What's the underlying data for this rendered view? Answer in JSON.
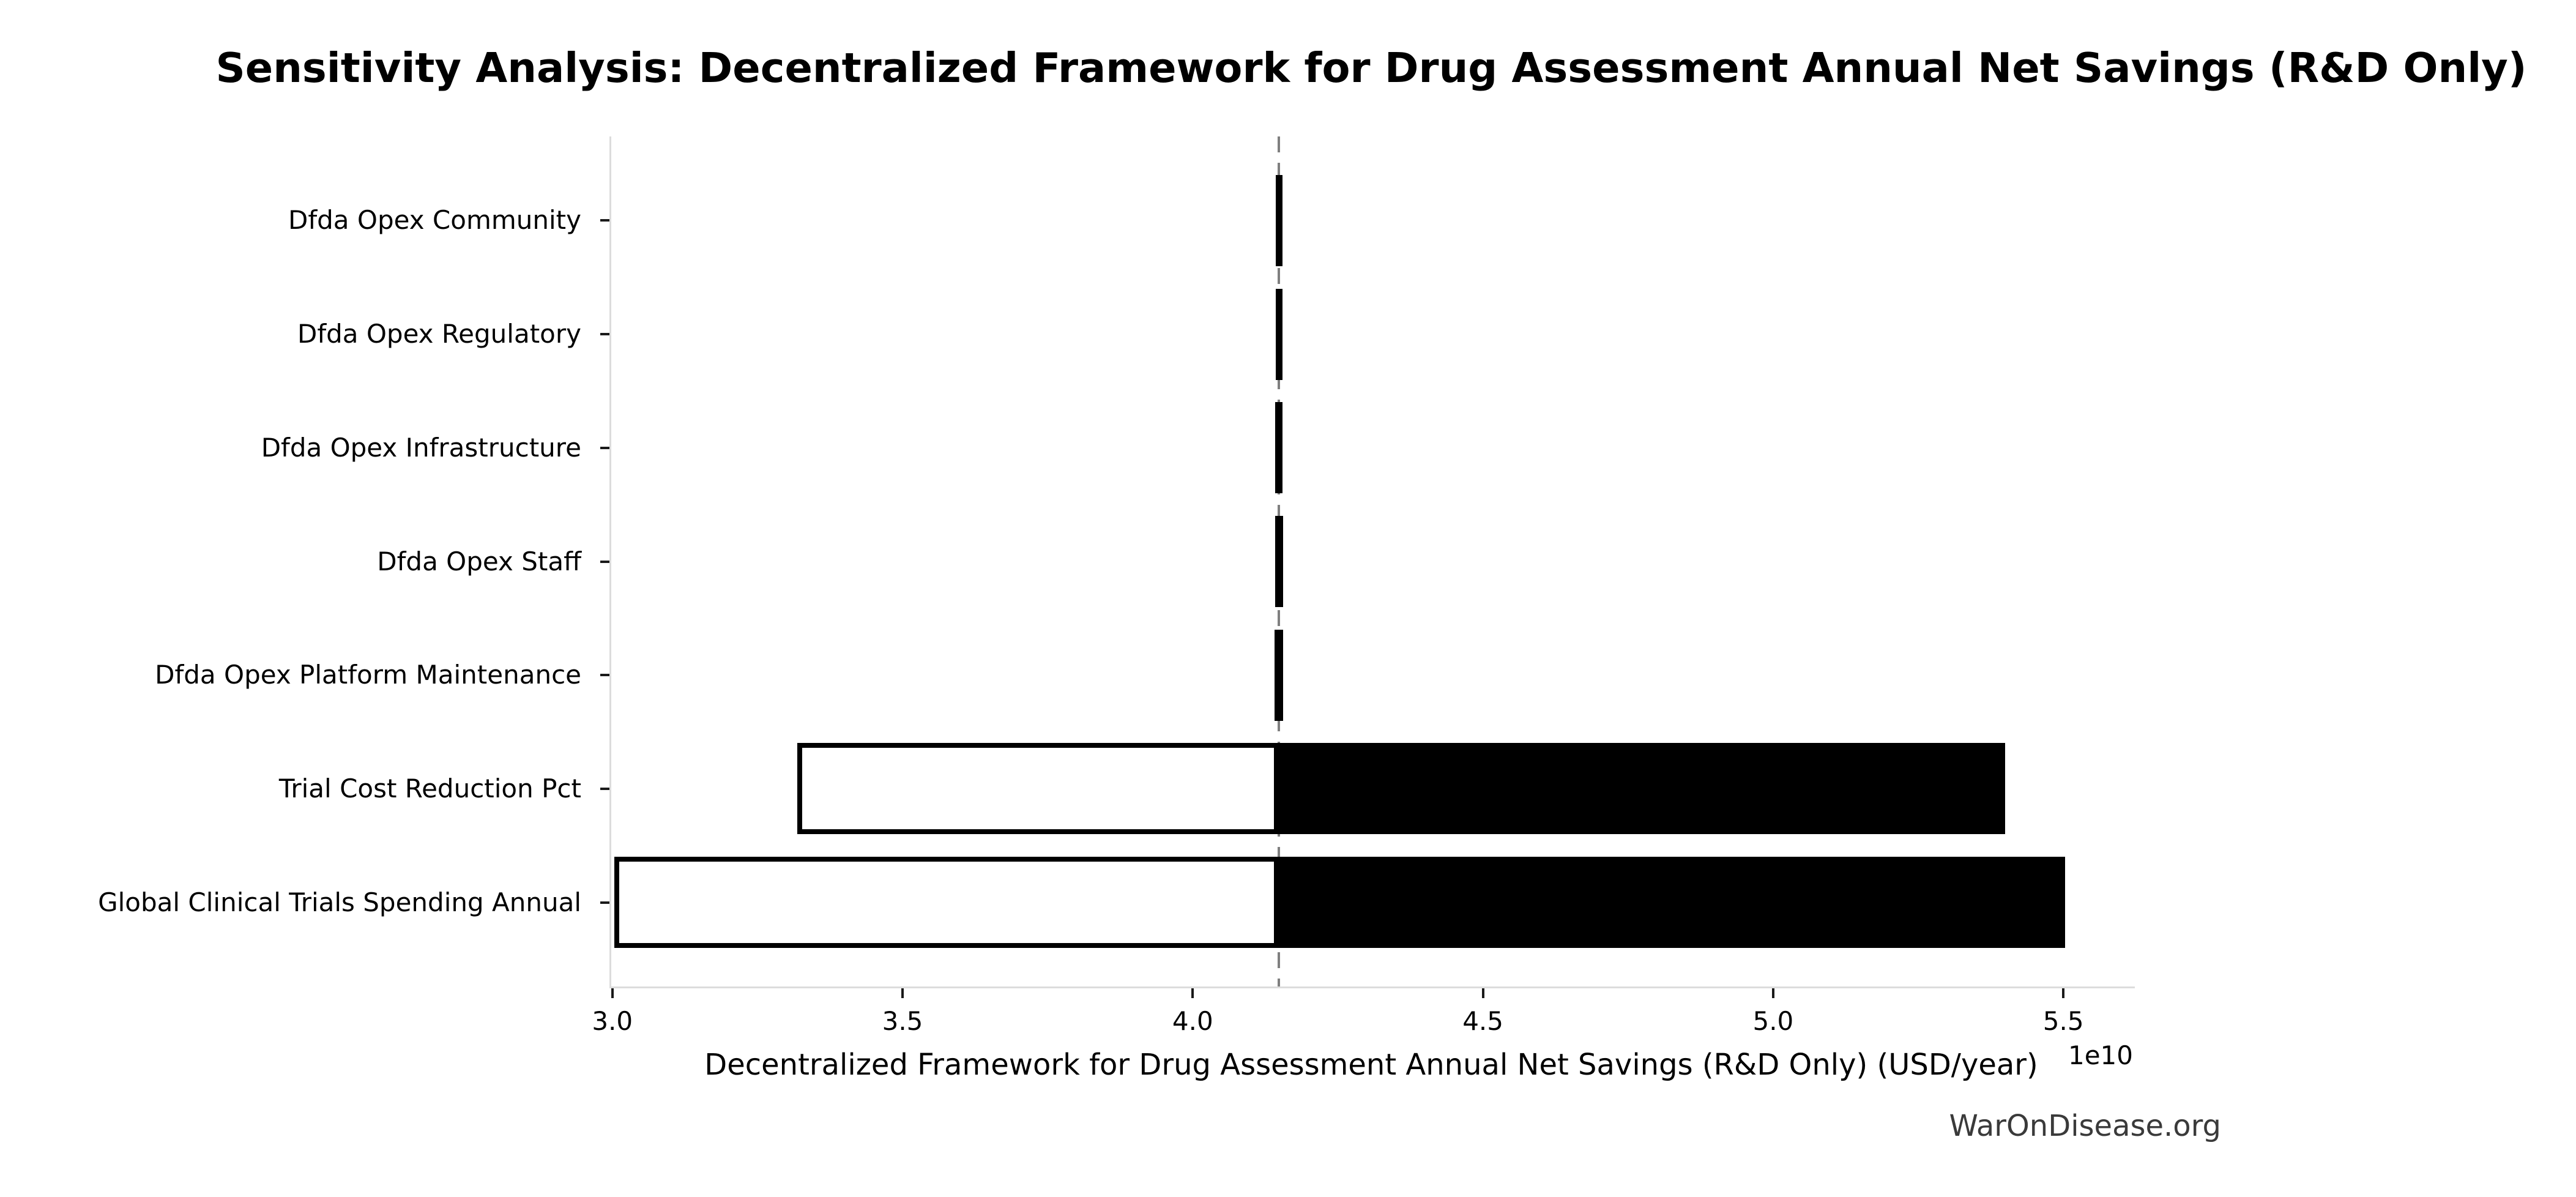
{
  "title": "Sensitivity Analysis: Decentralized Framework for Drug Assessment Annual Net Savings (R&D Only)",
  "watermark": "WarOnDisease.org",
  "chart_data": {
    "type": "bar",
    "subtype": "tornado-sensitivity",
    "orientation": "horizontal",
    "title": "Sensitivity Analysis: Decentralized Framework for Drug Assessment Annual Net Savings (R&D Only)",
    "xlabel": "Decentralized Framework for Drug Assessment Annual Net Savings (R&D Only) (USD/year)",
    "x_offset_label": "1e10",
    "value_unit": "1e10 USD/year",
    "unit_multiplier": 10000000000.0,
    "baseline": 4.145,
    "x_min": 2.995,
    "x_max": 5.62,
    "x_ticks": [
      3.0,
      3.5,
      4.0,
      4.5,
      5.0,
      5.5
    ],
    "x_tick_labels": [
      "3.0",
      "3.5",
      "4.0",
      "4.5",
      "5.0",
      "5.5"
    ],
    "grid": false,
    "legend": null,
    "categories": [
      "Dfda Opex Community",
      "Dfda Opex Regulatory",
      "Dfda Opex Infrastructure",
      "Dfda Opex Staff",
      "Dfda Opex Platform Maintenance",
      "Trial Cost Reduction Pct",
      "Global Clinical Trials Spending Annual"
    ],
    "rows": [
      {
        "label": "Dfda Opex Community",
        "low": 4.141,
        "high": 4.15
      },
      {
        "label": "Dfda Opex Regulatory",
        "low": 4.141,
        "high": 4.15
      },
      {
        "label": "Dfda Opex Infrastructure",
        "low": 4.14,
        "high": 4.15
      },
      {
        "label": "Dfda Opex Staff",
        "low": 4.14,
        "high": 4.151
      },
      {
        "label": "Dfda Opex Platform Maintenance",
        "low": 4.139,
        "high": 4.151
      },
      {
        "label": "Trial Cost Reduction Pct",
        "low": 3.316,
        "high": 5.396
      },
      {
        "label": "Global Clinical Trials Spending Annual",
        "low": 3.0,
        "high": 5.5
      }
    ],
    "colors": {
      "low_fill": "#ffffff",
      "high_fill": "#000000",
      "bar_edge": "#000000",
      "baseline_line": "#7f7f7f",
      "spine": "#dcdcdc",
      "tick": "#1a1a1a",
      "watermark": "#3a3a3a"
    }
  }
}
